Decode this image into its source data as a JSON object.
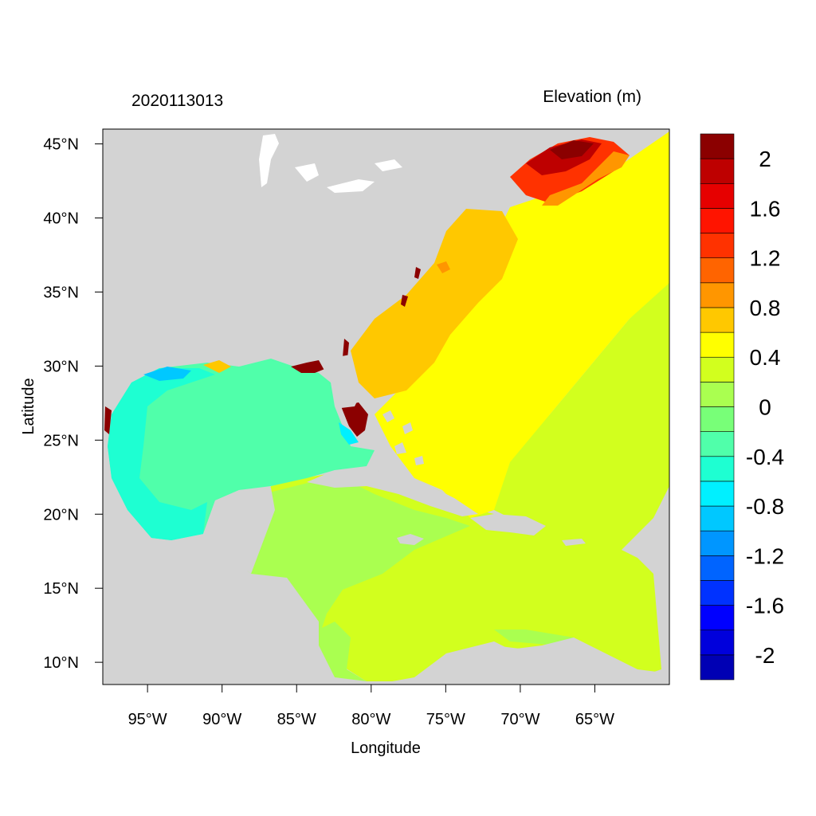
{
  "map": {
    "timestamp": "2020113013",
    "variable_title": "Elevation (m)",
    "xlabel": "Longitude",
    "ylabel": "Latitude",
    "lon_range": [
      -98,
      -60
    ],
    "lat_range": [
      8.5,
      46
    ],
    "lon_ticks": [
      {
        "value": -95,
        "label": "95°W"
      },
      {
        "value": -90,
        "label": "90°W"
      },
      {
        "value": -85,
        "label": "85°W"
      },
      {
        "value": -80,
        "label": "80°W"
      },
      {
        "value": -75,
        "label": "75°W"
      },
      {
        "value": -70,
        "label": "70°W"
      },
      {
        "value": -65,
        "label": "65°W"
      }
    ],
    "lat_ticks": [
      {
        "value": 45,
        "label": "45°N"
      },
      {
        "value": 40,
        "label": "40°N"
      },
      {
        "value": 35,
        "label": "35°N"
      },
      {
        "value": 30,
        "label": "30°N"
      },
      {
        "value": 25,
        "label": "25°N"
      },
      {
        "value": 20,
        "label": "20°N"
      },
      {
        "value": 15,
        "label": "15°N"
      },
      {
        "value": 10,
        "label": "10°N"
      }
    ],
    "land_color": "#d3d3d3"
  },
  "colorbar": {
    "bins": [
      {
        "color": "#0000b4"
      },
      {
        "color": "#0000dc"
      },
      {
        "color": "#0000ff"
      },
      {
        "color": "#0032ff"
      },
      {
        "color": "#0064ff"
      },
      {
        "color": "#0096ff"
      },
      {
        "color": "#00c8ff"
      },
      {
        "color": "#00f0ff"
      },
      {
        "color": "#1effd2"
      },
      {
        "color": "#50ffaa"
      },
      {
        "color": "#78ff78"
      },
      {
        "color": "#aaff50"
      },
      {
        "color": "#d2ff1e"
      },
      {
        "color": "#ffff00"
      },
      {
        "color": "#ffc800"
      },
      {
        "color": "#ff9600"
      },
      {
        "color": "#ff6400"
      },
      {
        "color": "#ff3200"
      },
      {
        "color": "#ff1400"
      },
      {
        "color": "#e60000"
      },
      {
        "color": "#be0000"
      },
      {
        "color": "#8b0000"
      }
    ],
    "labels": [
      {
        "value": -2,
        "text": "-2"
      },
      {
        "value": -1.6,
        "text": "-1.6"
      },
      {
        "value": -1.2,
        "text": "-1.2"
      },
      {
        "value": -0.8,
        "text": "-0.8"
      },
      {
        "value": -0.4,
        "text": "-0.4"
      },
      {
        "value": 0,
        "text": "0"
      },
      {
        "value": 0.4,
        "text": "0.4"
      },
      {
        "value": 0.8,
        "text": "0.8"
      },
      {
        "value": 1.2,
        "text": "1.2"
      },
      {
        "value": 1.6,
        "text": "1.6"
      },
      {
        "value": 2,
        "text": "2"
      }
    ]
  }
}
